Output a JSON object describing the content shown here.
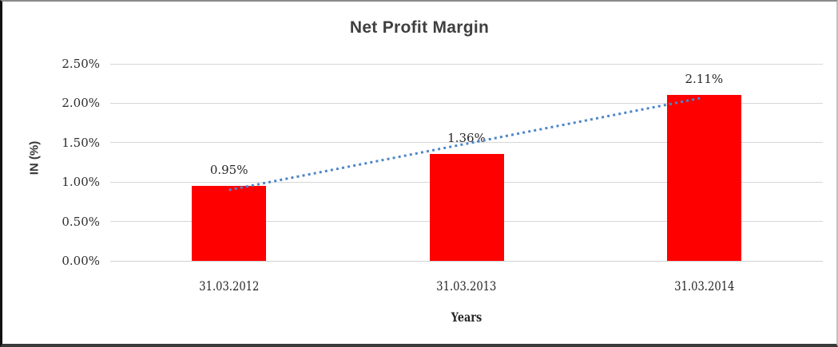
{
  "chart_data": {
    "type": "bar",
    "title": "Net Profit Margin",
    "xlabel": "Years",
    "ylabel": "IN (%)",
    "categories": [
      "31.03.2012",
      "31.03.2013",
      "31.03.2014"
    ],
    "series": [
      {
        "name": "Net Profit Margin",
        "values": [
          0.95,
          1.36,
          2.11
        ]
      }
    ],
    "data_labels": [
      "0.95%",
      "1.36%",
      "2.11%"
    ],
    "ytick_values": [
      0,
      0.5,
      1,
      1.5,
      2,
      2.5
    ],
    "ytick_labels": [
      "0.00%",
      "0.50%",
      "1.00%",
      "1.50%",
      "2.00%",
      "2.50%"
    ],
    "ylim": [
      0,
      2.5
    ],
    "grid": true,
    "legend": false,
    "colors": {
      "bar": "#fe0000",
      "gridline": "#d6d6d6",
      "axis_line": "#d0d0d0",
      "title_text": "#3f3f3f",
      "trendline": "#4e86c8"
    },
    "trendline": {
      "type": "linear",
      "style": "dotted"
    }
  }
}
